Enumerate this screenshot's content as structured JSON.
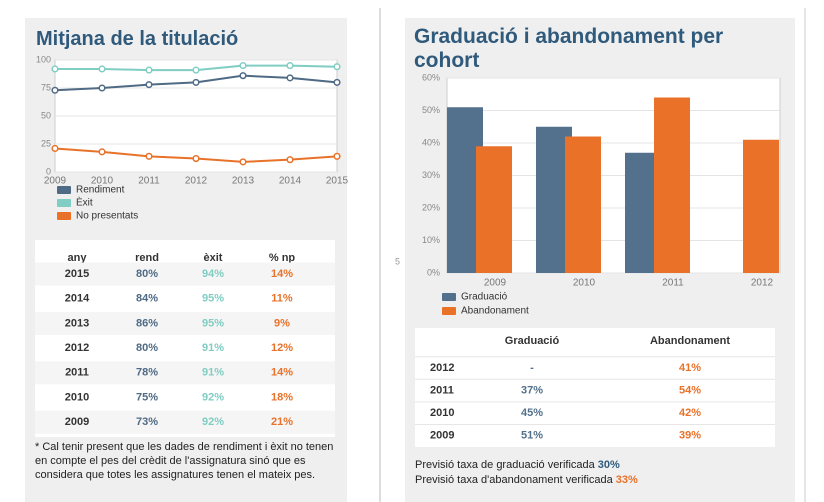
{
  "chart_data": [
    {
      "type": "line",
      "title": "Mitjana de la titulació",
      "categories": [
        "2009",
        "2010",
        "2011",
        "2012",
        "2013",
        "2014",
        "2015"
      ],
      "series": [
        {
          "name": "Rendiment",
          "color": "#4e6a85",
          "values": [
            73,
            75,
            78,
            80,
            86,
            84,
            80
          ]
        },
        {
          "name": "Èxit",
          "color": "#7fcdc3",
          "values": [
            92,
            92,
            91,
            91,
            95,
            95,
            94
          ]
        },
        {
          "name": "No presentats",
          "color": "#e8722a",
          "values": [
            21,
            18,
            14,
            12,
            9,
            11,
            14
          ]
        }
      ],
      "ylim": [
        0,
        100
      ],
      "yticks": [
        0,
        25,
        50,
        75,
        100
      ],
      "grid": true
    },
    {
      "type": "bar",
      "title": "Graduació i abandonament per cohort",
      "categories": [
        "2009",
        "2010",
        "2011",
        "2012"
      ],
      "series": [
        {
          "name": "Graduació",
          "color": "#53718c",
          "values": [
            51,
            45,
            37,
            null
          ]
        },
        {
          "name": "Abandonament",
          "color": "#ea7128",
          "values": [
            39,
            42,
            54,
            41
          ]
        }
      ],
      "ylim": [
        0,
        60
      ],
      "yticks": [
        {
          "value": 0,
          "label": "0%"
        },
        {
          "value": 10,
          "label": "10%"
        },
        {
          "value": 20,
          "label": "20%"
        },
        {
          "value": 30,
          "label": "30%"
        },
        {
          "value": 40,
          "label": "40%"
        },
        {
          "value": 50,
          "label": "50%"
        },
        {
          "value": 60,
          "label": "60%"
        }
      ],
      "grid": true
    }
  ],
  "left_table": {
    "columns": [
      "any",
      "rend",
      "èxit",
      "% np"
    ],
    "rows": [
      [
        "2015",
        "80%",
        "94%",
        "14%"
      ],
      [
        "2014",
        "84%",
        "95%",
        "11%"
      ],
      [
        "2013",
        "86%",
        "95%",
        "9%"
      ],
      [
        "2012",
        "80%",
        "91%",
        "12%"
      ],
      [
        "2011",
        "78%",
        "91%",
        "14%"
      ],
      [
        "2010",
        "75%",
        "92%",
        "18%"
      ],
      [
        "2009",
        "73%",
        "92%",
        "21%"
      ]
    ]
  },
  "note": "* Cal tenir present que les dades de rendiment i èxit no tenen en compte el pes del crèdit de l'assignatura sinó que es considera que totes les assignatures tenen el mateix pes.",
  "right_table": {
    "columns": [
      "Graduació",
      "Abandonament"
    ],
    "rows": [
      {
        "label": "2012",
        "values": [
          "-",
          "41%"
        ]
      },
      {
        "label": "2011",
        "values": [
          "37%",
          "54%"
        ]
      },
      {
        "label": "2010",
        "values": [
          "45%",
          "42%"
        ]
      },
      {
        "label": "2009",
        "values": [
          "51%",
          "39%"
        ]
      }
    ]
  },
  "forecast": [
    {
      "text": "Previsió taxa de graduació verificada",
      "value": "30%"
    },
    {
      "text": "Previsió taxa d'abandonament verificada",
      "value": "33%"
    }
  ],
  "stray": "5"
}
